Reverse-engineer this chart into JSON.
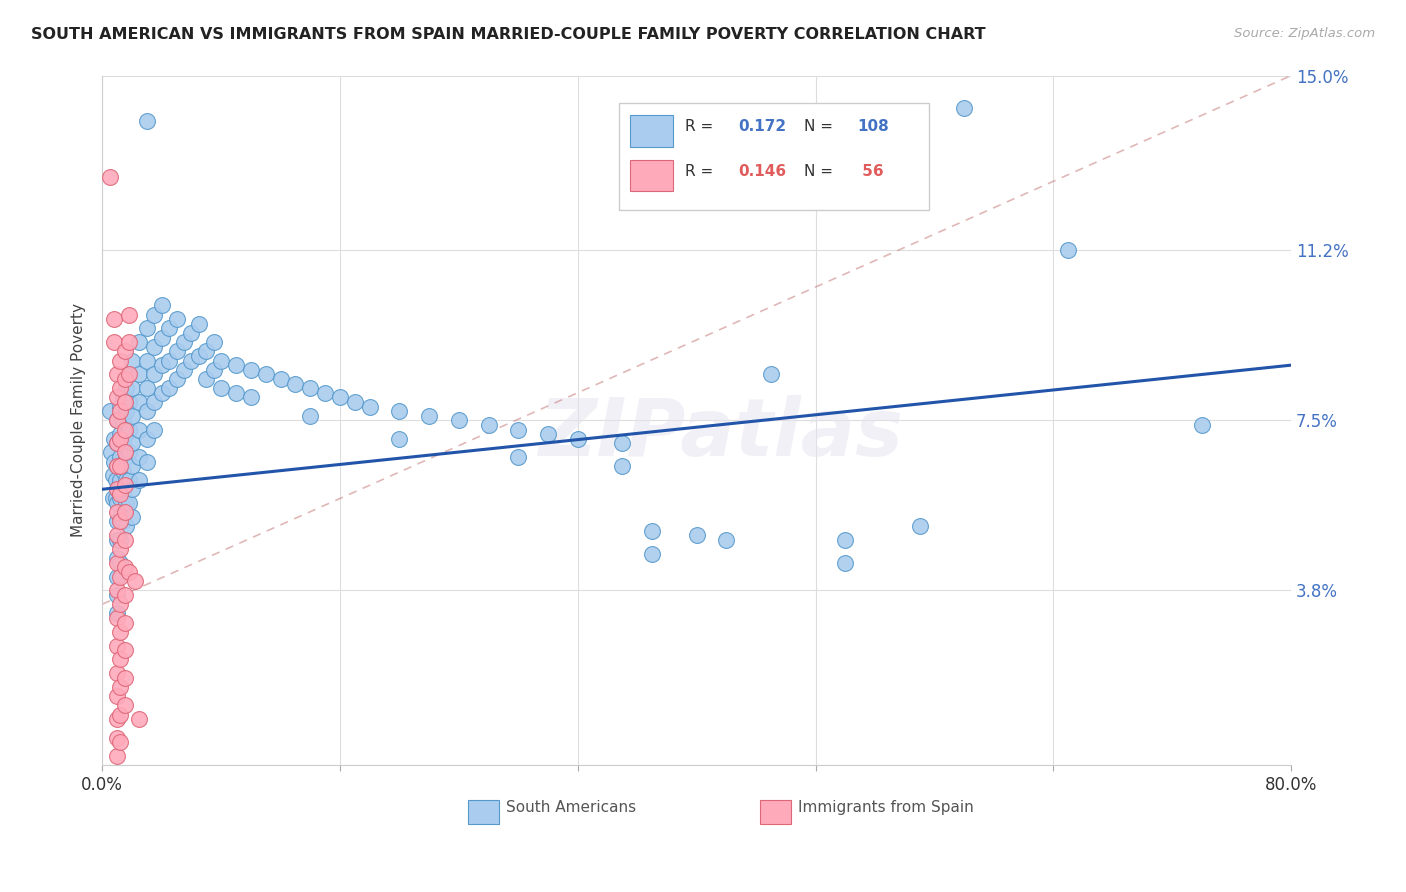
{
  "title": "SOUTH AMERICAN VS IMMIGRANTS FROM SPAIN MARRIED-COUPLE FAMILY POVERTY CORRELATION CHART",
  "source": "Source: ZipAtlas.com",
  "ylabel": "Married-Couple Family Poverty",
  "ytick_vals": [
    0.0,
    0.038,
    0.075,
    0.112,
    0.15
  ],
  "ytick_labels": [
    "",
    "3.8%",
    "7.5%",
    "11.2%",
    "15.0%"
  ],
  "xtick_vals": [
    0.0,
    0.16,
    0.32,
    0.48,
    0.64,
    0.8
  ],
  "xtick_labels": [
    "0.0%",
    "",
    "",
    "",
    "",
    "80.0%"
  ],
  "blue_color": "#aaccee",
  "blue_edge": "#5599cc",
  "pink_color": "#ffaabb",
  "pink_edge": "#dd6677",
  "trend_blue_color": "#2255aa",
  "trend_pink_color": "#cc8888",
  "watermark": "ZIPatlas",
  "xmin": 0.0,
  "xmax": 0.8,
  "ymin": 0.0,
  "ymax": 0.15,
  "blue_trend_x": [
    0.0,
    0.8
  ],
  "blue_trend_y": [
    0.06,
    0.087
  ],
  "pink_trend_x": [
    0.0,
    0.8
  ],
  "pink_trend_y": [
    0.035,
    0.15
  ],
  "south_americans": [
    [
      0.005,
      0.077
    ],
    [
      0.006,
      0.068
    ],
    [
      0.007,
      0.063
    ],
    [
      0.007,
      0.058
    ],
    [
      0.008,
      0.071
    ],
    [
      0.008,
      0.066
    ],
    [
      0.009,
      0.062
    ],
    [
      0.009,
      0.058
    ],
    [
      0.01,
      0.075
    ],
    [
      0.01,
      0.07
    ],
    [
      0.01,
      0.065
    ],
    [
      0.01,
      0.06
    ],
    [
      0.01,
      0.057
    ],
    [
      0.01,
      0.053
    ],
    [
      0.01,
      0.049
    ],
    [
      0.01,
      0.045
    ],
    [
      0.01,
      0.041
    ],
    [
      0.01,
      0.037
    ],
    [
      0.01,
      0.033
    ],
    [
      0.012,
      0.078
    ],
    [
      0.012,
      0.072
    ],
    [
      0.012,
      0.067
    ],
    [
      0.012,
      0.062
    ],
    [
      0.012,
      0.058
    ],
    [
      0.012,
      0.054
    ],
    [
      0.012,
      0.049
    ],
    [
      0.012,
      0.044
    ],
    [
      0.014,
      0.08
    ],
    [
      0.014,
      0.075
    ],
    [
      0.014,
      0.07
    ],
    [
      0.014,
      0.064
    ],
    [
      0.014,
      0.059
    ],
    [
      0.014,
      0.053
    ],
    [
      0.016,
      0.082
    ],
    [
      0.016,
      0.077
    ],
    [
      0.016,
      0.072
    ],
    [
      0.016,
      0.067
    ],
    [
      0.016,
      0.062
    ],
    [
      0.016,
      0.057
    ],
    [
      0.016,
      0.052
    ],
    [
      0.018,
      0.085
    ],
    [
      0.018,
      0.079
    ],
    [
      0.018,
      0.073
    ],
    [
      0.018,
      0.068
    ],
    [
      0.018,
      0.062
    ],
    [
      0.018,
      0.057
    ],
    [
      0.02,
      0.088
    ],
    [
      0.02,
      0.082
    ],
    [
      0.02,
      0.076
    ],
    [
      0.02,
      0.07
    ],
    [
      0.02,
      0.065
    ],
    [
      0.02,
      0.06
    ],
    [
      0.02,
      0.054
    ],
    [
      0.025,
      0.092
    ],
    [
      0.025,
      0.085
    ],
    [
      0.025,
      0.079
    ],
    [
      0.025,
      0.073
    ],
    [
      0.025,
      0.067
    ],
    [
      0.025,
      0.062
    ],
    [
      0.03,
      0.095
    ],
    [
      0.03,
      0.088
    ],
    [
      0.03,
      0.082
    ],
    [
      0.03,
      0.077
    ],
    [
      0.03,
      0.071
    ],
    [
      0.03,
      0.066
    ],
    [
      0.035,
      0.098
    ],
    [
      0.035,
      0.091
    ],
    [
      0.035,
      0.085
    ],
    [
      0.035,
      0.079
    ],
    [
      0.035,
      0.073
    ],
    [
      0.04,
      0.1
    ],
    [
      0.04,
      0.093
    ],
    [
      0.04,
      0.087
    ],
    [
      0.04,
      0.081
    ],
    [
      0.045,
      0.095
    ],
    [
      0.045,
      0.088
    ],
    [
      0.045,
      0.082
    ],
    [
      0.05,
      0.097
    ],
    [
      0.05,
      0.09
    ],
    [
      0.05,
      0.084
    ],
    [
      0.055,
      0.092
    ],
    [
      0.055,
      0.086
    ],
    [
      0.06,
      0.094
    ],
    [
      0.06,
      0.088
    ],
    [
      0.065,
      0.096
    ],
    [
      0.065,
      0.089
    ],
    [
      0.07,
      0.09
    ],
    [
      0.07,
      0.084
    ],
    [
      0.075,
      0.092
    ],
    [
      0.075,
      0.086
    ],
    [
      0.08,
      0.088
    ],
    [
      0.08,
      0.082
    ],
    [
      0.09,
      0.087
    ],
    [
      0.09,
      0.081
    ],
    [
      0.1,
      0.086
    ],
    [
      0.1,
      0.08
    ],
    [
      0.11,
      0.085
    ],
    [
      0.12,
      0.084
    ],
    [
      0.13,
      0.083
    ],
    [
      0.14,
      0.082
    ],
    [
      0.14,
      0.076
    ],
    [
      0.15,
      0.081
    ],
    [
      0.16,
      0.08
    ],
    [
      0.17,
      0.079
    ],
    [
      0.18,
      0.078
    ],
    [
      0.2,
      0.077
    ],
    [
      0.2,
      0.071
    ],
    [
      0.22,
      0.076
    ],
    [
      0.24,
      0.075
    ],
    [
      0.26,
      0.074
    ],
    [
      0.28,
      0.073
    ],
    [
      0.28,
      0.067
    ],
    [
      0.3,
      0.072
    ],
    [
      0.32,
      0.071
    ],
    [
      0.35,
      0.07
    ],
    [
      0.35,
      0.065
    ],
    [
      0.37,
      0.051
    ],
    [
      0.37,
      0.046
    ],
    [
      0.4,
      0.05
    ],
    [
      0.42,
      0.049
    ],
    [
      0.45,
      0.085
    ],
    [
      0.5,
      0.049
    ],
    [
      0.5,
      0.044
    ],
    [
      0.55,
      0.052
    ],
    [
      0.58,
      0.143
    ],
    [
      0.65,
      0.112
    ],
    [
      0.74,
      0.074
    ],
    [
      0.03,
      0.14
    ]
  ],
  "immigrants_spain": [
    [
      0.005,
      0.128
    ],
    [
      0.008,
      0.097
    ],
    [
      0.008,
      0.092
    ],
    [
      0.01,
      0.085
    ],
    [
      0.01,
      0.08
    ],
    [
      0.01,
      0.075
    ],
    [
      0.01,
      0.07
    ],
    [
      0.01,
      0.065
    ],
    [
      0.01,
      0.06
    ],
    [
      0.01,
      0.055
    ],
    [
      0.01,
      0.05
    ],
    [
      0.01,
      0.044
    ],
    [
      0.01,
      0.038
    ],
    [
      0.01,
      0.032
    ],
    [
      0.01,
      0.026
    ],
    [
      0.01,
      0.02
    ],
    [
      0.01,
      0.015
    ],
    [
      0.01,
      0.01
    ],
    [
      0.01,
      0.006
    ],
    [
      0.01,
      0.002
    ],
    [
      0.012,
      0.088
    ],
    [
      0.012,
      0.082
    ],
    [
      0.012,
      0.077
    ],
    [
      0.012,
      0.071
    ],
    [
      0.012,
      0.065
    ],
    [
      0.012,
      0.059
    ],
    [
      0.012,
      0.053
    ],
    [
      0.012,
      0.047
    ],
    [
      0.012,
      0.041
    ],
    [
      0.012,
      0.035
    ],
    [
      0.012,
      0.029
    ],
    [
      0.012,
      0.023
    ],
    [
      0.012,
      0.017
    ],
    [
      0.012,
      0.011
    ],
    [
      0.012,
      0.005
    ],
    [
      0.015,
      0.09
    ],
    [
      0.015,
      0.084
    ],
    [
      0.015,
      0.079
    ],
    [
      0.015,
      0.073
    ],
    [
      0.015,
      0.068
    ],
    [
      0.015,
      0.061
    ],
    [
      0.015,
      0.055
    ],
    [
      0.015,
      0.049
    ],
    [
      0.015,
      0.043
    ],
    [
      0.015,
      0.037
    ],
    [
      0.015,
      0.031
    ],
    [
      0.015,
      0.025
    ],
    [
      0.015,
      0.019
    ],
    [
      0.015,
      0.013
    ],
    [
      0.018,
      0.098
    ],
    [
      0.018,
      0.092
    ],
    [
      0.018,
      0.085
    ],
    [
      0.018,
      0.042
    ],
    [
      0.022,
      0.04
    ],
    [
      0.025,
      0.01
    ]
  ]
}
